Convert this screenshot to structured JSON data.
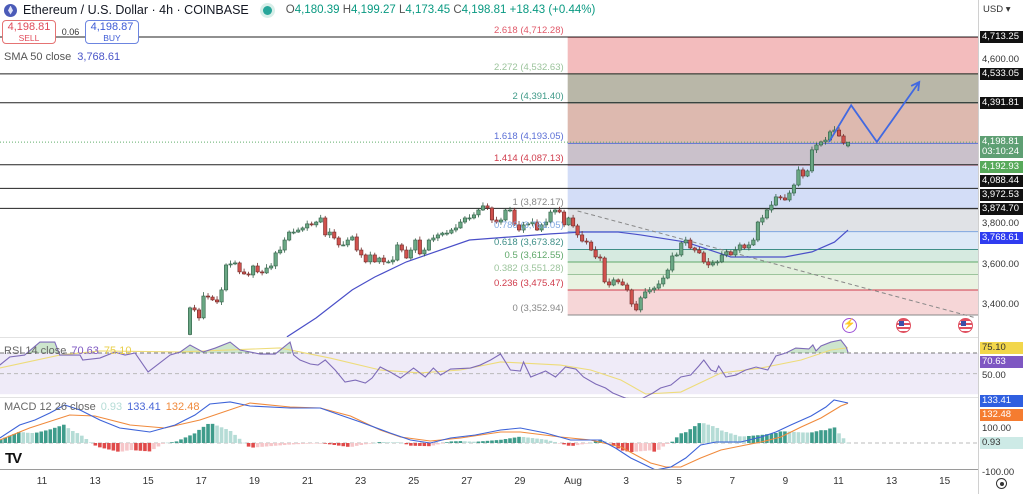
{
  "header": {
    "title": "Ethereum / U.S. Dollar · 4h · COINBASE",
    "ohlc": {
      "o_label": "O",
      "o": "4,180.39",
      "h_label": "H",
      "h": "4,199.27",
      "l_label": "L",
      "l": "4,173.45",
      "c_label": "C",
      "c": "4,198.81",
      "change": "+18.43 (+0.44%)"
    }
  },
  "trade": {
    "sell_price": "4,198.81",
    "sell_label": "SELL",
    "spread": "0.06",
    "buy_price": "4,198.87",
    "buy_label": "BUY"
  },
  "sma_legend": {
    "label": "SMA 50 close",
    "value": "3,768.61"
  },
  "rsi_legend": {
    "label": "RSI 14 close",
    "rsi": "70.63",
    "ma": "75.10"
  },
  "macd_legend": {
    "label": "MACD 12 26 close",
    "hist": "0.93",
    "macd": "133.41",
    "signal": "132.48"
  },
  "axis": {
    "currency": "USD",
    "labels": [
      {
        "text": "4,713.25",
        "price": 4713.25,
        "style": "box",
        "color": "#111111"
      },
      {
        "text": "4,600.00",
        "price": 4600,
        "style": "plain"
      },
      {
        "text": "4,533.05",
        "price": 4533.05,
        "style": "box",
        "color": "#111111"
      },
      {
        "text": "4,391.81",
        "price": 4391.81,
        "style": "box",
        "color": "#111111"
      },
      {
        "text": "3,800.00",
        "price": 3800,
        "style": "plain"
      },
      {
        "text": "4,198.81",
        "price": 4198.81,
        "style": "box",
        "color": "#5e9f73",
        "sub": "03:10:24"
      },
      {
        "text": "4,192.93",
        "price": 4192.93,
        "style": "box",
        "color": "#57a95a"
      },
      {
        "text": "4,088.44",
        "price": 4088.44,
        "style": "box",
        "color": "#111111"
      },
      {
        "text": "3,972.53",
        "price": 3972.53,
        "style": "box",
        "color": "#111111"
      },
      {
        "text": "3,874.70",
        "price": 3874.7,
        "style": "box",
        "color": "#111111"
      },
      {
        "text": "3,768.61",
        "price": 3768.61,
        "style": "box",
        "color": "#2f3cf0"
      },
      {
        "text": "3,600.00",
        "price": 3600,
        "style": "plain"
      },
      {
        "text": "3,400.00",
        "price": 3400,
        "style": "plain"
      }
    ],
    "rsi_labels": [
      {
        "text": "75.10",
        "value": 75.1,
        "style": "box",
        "color": "#f2d64b",
        "dark": true
      },
      {
        "text": "70.63",
        "value": 70.63,
        "style": "box",
        "color": "#7e57c2"
      },
      {
        "text": "50.00",
        "value": 50,
        "style": "plain"
      }
    ],
    "macd_labels": [
      {
        "text": "133.41",
        "value": 140,
        "style": "box",
        "color": "#2f5fe0"
      },
      {
        "text": "132.48",
        "value": 120,
        "style": "box",
        "color": "#f57c30"
      },
      {
        "text": "100.00",
        "value": 93,
        "style": "plain"
      },
      {
        "text": "0.93",
        "value": 0.93,
        "style": "box",
        "color": "#cdeae6",
        "dark": true
      },
      {
        "text": "-100.00",
        "value": -100,
        "style": "plain"
      }
    ]
  },
  "x_axis": {
    "ticks": [
      "11",
      "13",
      "15",
      "17",
      "19",
      "21",
      "23",
      "25",
      "27",
      "29",
      "Aug",
      "3",
      "5",
      "7",
      "9",
      "11",
      "13",
      "15"
    ]
  },
  "chart_data": {
    "type": "candlestick",
    "symbol": "Ethereum / U.S. Dollar",
    "interval": "4h",
    "y_range": [
      3300,
      4760
    ],
    "last_candle": {
      "open": 4180.39,
      "high": 4199.27,
      "low": 4173.45,
      "close": 4198.81
    },
    "closes": [
      3388,
      3378,
      3339,
      3446,
      3441,
      3427,
      3417,
      3476,
      3598,
      3603,
      3608,
      3564,
      3554,
      3549,
      3593,
      3564,
      3559,
      3583,
      3593,
      3657,
      3671,
      3720,
      3759,
      3759,
      3769,
      3779,
      3799,
      3794,
      3808,
      3828,
      3745,
      3759,
      3730,
      3696,
      3696,
      3720,
      3735,
      3671,
      3647,
      3613,
      3647,
      3613,
      3632,
      3613,
      3613,
      3622,
      3696,
      3671,
      3632,
      3671,
      3720,
      3652,
      3671,
      3720,
      3730,
      3745,
      3754,
      3754,
      3769,
      3779,
      3808,
      3828,
      3828,
      3843,
      3867,
      3887,
      3877,
      3818,
      3808,
      3818,
      3867,
      3867,
      3794,
      3769,
      3794,
      3799,
      3808,
      3769,
      3794,
      3808,
      3857,
      3867,
      3857,
      3794,
      3828,
      3789,
      3745,
      3715,
      3710,
      3671,
      3637,
      3632,
      3515,
      3500,
      3525,
      3515,
      3500,
      3476,
      3407,
      3378,
      3437,
      3466,
      3476,
      3485,
      3505,
      3534,
      3573,
      3642,
      3647,
      3706,
      3720,
      3681,
      3671,
      3657,
      3613,
      3598,
      3608,
      3613,
      3647,
      3662,
      3647,
      3671,
      3696,
      3681,
      3696,
      3720,
      3808,
      3828,
      3867,
      3891,
      3931,
      3926,
      3916,
      3950,
      3989,
      4063,
      4033,
      4058,
      4161,
      4185,
      4200,
      4209,
      4249,
      4258,
      4229,
      4195,
      4198.81
    ],
    "sma_50": [
      [
        21.5,
        3246
      ],
      [
        28,
        3339
      ],
      [
        36,
        3476
      ],
      [
        41,
        3539
      ],
      [
        48,
        3613
      ],
      [
        62,
        3720
      ],
      [
        80,
        3750
      ],
      [
        87,
        3759
      ],
      [
        95,
        3759
      ],
      [
        100,
        3745
      ],
      [
        110,
        3710
      ],
      [
        120,
        3637
      ],
      [
        132,
        3637
      ],
      [
        138,
        3662
      ],
      [
        143,
        3710
      ],
      [
        146,
        3768.61
      ]
    ],
    "horizontal_levels": [
      4713.25,
      4533.05,
      4391.81,
      4088.44,
      3972.53,
      3874.7
    ],
    "current_price": 4198.81,
    "fibonacci": {
      "start_bar": 83.8,
      "levels": [
        {
          "ratio": "2.618",
          "price": 4712.28,
          "label": "2.618 (4,712.28)",
          "color": "#e05a6a",
          "fill": "#f3bcbd"
        },
        {
          "ratio": "2.272",
          "price": 4532.63,
          "label": "2.272 (4,532.63)",
          "color": "#9cc49c",
          "fill": "#b9b7a8"
        },
        {
          "ratio": "2",
          "price": 4391.4,
          "label": "2 (4,391.40)",
          "color": "#3f9a88",
          "fill": "#ddb9af"
        },
        {
          "ratio": "1.618",
          "price": 4193.05,
          "label": "1.618 (4,193.05)",
          "color": "#5b6fd6",
          "fill": "#cac1cb"
        },
        {
          "ratio": "1.414",
          "price": 4087.13,
          "label": "1.414 (4,087.13)",
          "color": "#d03c4c",
          "fill": "#d3ddf7"
        },
        {
          "ratio": "1",
          "price": 3872.17,
          "label": "1 (3,872.17)",
          "color": "#888888",
          "fill": "#e0e2e6"
        },
        {
          "ratio": "0.786",
          "price": 3761.05,
          "label": "0.786 (3,761.05)",
          "color": "#7fa7e0",
          "fill": "#dde9f7"
        },
        {
          "ratio": "0.618",
          "price": 3673.82,
          "label": "0.618 (3,673.82)",
          "color": "#3f8f88",
          "fill": "#d6eae0"
        },
        {
          "ratio": "0.5",
          "price": 3612.55,
          "label": "0.5 (3,612.55)",
          "color": "#5fa86a",
          "fill": "#e1efdc"
        },
        {
          "ratio": "0.382",
          "price": 3551.28,
          "label": "0.382 (3,551.28)",
          "color": "#9cc49c",
          "fill": "#e9f2e1"
        },
        {
          "ratio": "0.236",
          "price": 3475.47,
          "label": "0.236 (3,475.47)",
          "color": "#d03c4c",
          "fill": "#f6d6d7"
        },
        {
          "ratio": "0",
          "price": 3352.94,
          "label": "0 (3,352.94)",
          "color": "#888888",
          "fill": null
        }
      ]
    },
    "trendline": [
      [
        86,
        3862
      ],
      [
        174.4,
        3339
      ]
    ],
    "projection": [
      [
        141.8,
        4200
      ],
      [
        146.7,
        4379
      ],
      [
        152.4,
        4200
      ],
      [
        161.8,
        4493
      ]
    ],
    "rsi": {
      "overbought": 70,
      "oversold": 30,
      "mid": 50,
      "values": [
        [
          -42.2,
          58.3
        ],
        [
          -40,
          66.1
        ],
        [
          -36.7,
          68
        ],
        [
          -33.3,
          80.6
        ],
        [
          -30,
          80.6
        ],
        [
          -28.9,
          68
        ],
        [
          -24.4,
          68
        ],
        [
          -23.8,
          63.2
        ],
        [
          -20,
          65.1
        ],
        [
          -16.7,
          70.9
        ],
        [
          -14.4,
          68
        ],
        [
          -12.2,
          70
        ],
        [
          -9.3,
          51.6
        ],
        [
          -6.7,
          60.3
        ],
        [
          -4.4,
          68.1
        ],
        [
          -2.2,
          70.9
        ],
        [
          0,
          77.8
        ],
        [
          2.9,
          70.9
        ],
        [
          5.6,
          74.8
        ],
        [
          8.9,
          80.6
        ],
        [
          11.1,
          72.9
        ],
        [
          15.6,
          69
        ],
        [
          18.9,
          69
        ],
        [
          22.2,
          80.6
        ],
        [
          23,
          68
        ],
        [
          24.4,
          63.2
        ],
        [
          26.7,
          59.3
        ],
        [
          28.4,
          58.3
        ],
        [
          30,
          63.2
        ],
        [
          32.2,
          53.5
        ],
        [
          34.4,
          41.8
        ],
        [
          36.7,
          43.7
        ],
        [
          38.9,
          40.8
        ],
        [
          40.4,
          45.7
        ],
        [
          42.2,
          56.4
        ],
        [
          44.4,
          51.6
        ],
        [
          46.7,
          45.7
        ],
        [
          49.6,
          55.4
        ],
        [
          52.2,
          46.7
        ],
        [
          54,
          55.4
        ],
        [
          55.6,
          48.6
        ],
        [
          57.8,
          54.4
        ],
        [
          62.2,
          55.4
        ],
        [
          64.4,
          58.3
        ],
        [
          66.7,
          63.2
        ],
        [
          68.9,
          69
        ],
        [
          70,
          61.3
        ],
        [
          71.1,
          53.5
        ],
        [
          73.3,
          52.5
        ],
        [
          74,
          61.3
        ],
        [
          75.6,
          46.7
        ],
        [
          78.9,
          52.5
        ],
        [
          81.1,
          46.7
        ],
        [
          83.3,
          56.4
        ],
        [
          85.6,
          54.4
        ],
        [
          87.3,
          46.7
        ],
        [
          90,
          39.9
        ],
        [
          92.2,
          36
        ],
        [
          93.8,
          31.2
        ],
        [
          96.7,
          26
        ],
        [
          100,
          25
        ],
        [
          102.7,
          31.2
        ],
        [
          104.4,
          36
        ],
        [
          106.7,
          38.9
        ],
        [
          108.9,
          46.7
        ],
        [
          111.1,
          48.6
        ],
        [
          112.9,
          57.4
        ],
        [
          114,
          63.2
        ],
        [
          115.6,
          53.5
        ],
        [
          116.7,
          51.6
        ],
        [
          117.3,
          57.4
        ],
        [
          118.9,
          46.7
        ],
        [
          121.1,
          48.6
        ],
        [
          123.3,
          53.5
        ],
        [
          125.6,
          56.4
        ],
        [
          128.2,
          53.5
        ],
        [
          130,
          67.1
        ],
        [
          132.2,
          70
        ],
        [
          134.4,
          74.8
        ],
        [
          137.3,
          73.9
        ],
        [
          138.2,
          77.8
        ],
        [
          138.9,
          72
        ],
        [
          140,
          76.8
        ],
        [
          142.2,
          80.6
        ],
        [
          144.4,
          82.6
        ],
        [
          145.6,
          75.8
        ],
        [
          146,
          70.63
        ]
      ],
      "ma": [
        [
          -42.2,
          55.4
        ],
        [
          -28.9,
          68
        ],
        [
          -20,
          72
        ],
        [
          -2.2,
          71
        ],
        [
          20,
          74.9
        ],
        [
          31.1,
          65.1
        ],
        [
          42.2,
          53.5
        ],
        [
          51.1,
          50.6
        ],
        [
          60,
          53.5
        ],
        [
          68.9,
          61.3
        ],
        [
          82.2,
          58.3
        ],
        [
          88.9,
          53.5
        ],
        [
          95.6,
          43.8
        ],
        [
          101.1,
          30.2
        ],
        [
          108.9,
          32.1
        ],
        [
          117.8,
          50.6
        ],
        [
          126.7,
          55.4
        ],
        [
          135.6,
          63.2
        ],
        [
          142.2,
          72.9
        ],
        [
          146,
          75.1
        ]
      ]
    },
    "macd": {
      "y_ticks": [
        100,
        -100
      ],
      "macd": [
        [
          -42.2,
          16.7
        ],
        [
          -37.8,
          60
        ],
        [
          -34.4,
          76.7
        ],
        [
          -31.1,
          100
        ],
        [
          -27.8,
          126.7
        ],
        [
          -24.4,
          110
        ],
        [
          -20,
          76.7
        ],
        [
          -15.6,
          50
        ],
        [
          -8.9,
          36.7
        ],
        [
          -3.3,
          60
        ],
        [
          1.1,
          93.3
        ],
        [
          4.4,
          130
        ],
        [
          8.9,
          136.7
        ],
        [
          13.3,
          123.3
        ],
        [
          22.2,
          116.7
        ],
        [
          28.9,
          116.7
        ],
        [
          33.3,
          93.3
        ],
        [
          37.8,
          70
        ],
        [
          44.4,
          33.3
        ],
        [
          48.9,
          10
        ],
        [
          53.3,
          0
        ],
        [
          57.8,
          16.7
        ],
        [
          63.3,
          26.7
        ],
        [
          68.9,
          43.3
        ],
        [
          73.3,
          50
        ],
        [
          78.9,
          33.3
        ],
        [
          84.4,
          10
        ],
        [
          91.1,
          10
        ],
        [
          94.4,
          -16.7
        ],
        [
          97.8,
          -50
        ],
        [
          103.3,
          -90
        ],
        [
          106.7,
          -80
        ],
        [
          110,
          -50
        ],
        [
          113.3,
          -6.7
        ],
        [
          116.7,
          3.3
        ],
        [
          122.2,
          3.3
        ],
        [
          126.7,
          20
        ],
        [
          130,
          36.7
        ],
        [
          133.3,
          60
        ],
        [
          137.8,
          90
        ],
        [
          141.1,
          120
        ],
        [
          142.9,
          143.3
        ],
        [
          146,
          133.41
        ]
      ],
      "signal": [
        [
          -42.2,
          10
        ],
        [
          -35.6,
          50
        ],
        [
          -26.7,
          93.3
        ],
        [
          -21.1,
          90
        ],
        [
          -13.3,
          60
        ],
        [
          -5.6,
          50
        ],
        [
          2.2,
          76.7
        ],
        [
          13.3,
          133.3
        ],
        [
          22.2,
          120
        ],
        [
          28.9,
          116.7
        ],
        [
          35.6,
          90
        ],
        [
          42.2,
          43.3
        ],
        [
          46.7,
          20
        ],
        [
          53.3,
          6.7
        ],
        [
          60,
          16.7
        ],
        [
          68.9,
          36.7
        ],
        [
          73.3,
          36.7
        ],
        [
          82.2,
          20
        ],
        [
          88.9,
          10
        ],
        [
          95.6,
          -13.3
        ],
        [
          102.2,
          -66.7
        ],
        [
          105.6,
          -80
        ],
        [
          108.9,
          -80
        ],
        [
          113.3,
          -50
        ],
        [
          117.8,
          -23.3
        ],
        [
          123.3,
          -6.7
        ],
        [
          126.7,
          3.3
        ],
        [
          131.1,
          20
        ],
        [
          135.6,
          53.3
        ],
        [
          140,
          83.3
        ],
        [
          144.4,
          123.3
        ],
        [
          146,
          132.48
        ]
      ],
      "last_histogram": 0.93
    },
    "colors": {
      "up": "#6aa784",
      "down": "#d0514d",
      "sma": "#4a4fc8",
      "rsi": "#7e6bb8",
      "rsi_ma": "#eedc7a",
      "macd": "#3d63d8",
      "signal": "#f08a3c",
      "projection": "#4169e1",
      "hist_up": "#3e9c8b",
      "hist_up_fade": "#b5dcd6",
      "hist_down": "#e04a4a",
      "hist_down_fade": "#f6c6c9"
    }
  },
  "events": [
    "lightning-event-icon",
    "us-flag-icon",
    "us-flag-icon"
  ]
}
